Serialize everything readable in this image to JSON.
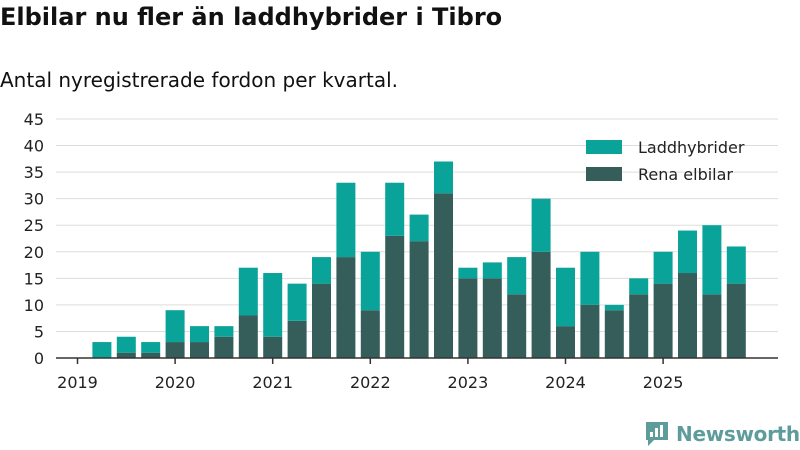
{
  "title": "Elbilar nu fler än laddhybrider i Tibro",
  "subtitle": "Antal nyregistrerade fordon per kvartal.",
  "brand": "Newsworthy",
  "colors": {
    "hybrid": "#0aa39a",
    "electric": "#355e5b",
    "brand": "#5e9c9c"
  },
  "chart_data": {
    "type": "bar",
    "stacked": true,
    "x_unit": "quarter",
    "x": [
      "2019 Q1",
      "2019 Q2",
      "2019 Q3",
      "2019 Q4",
      "2020 Q1",
      "2020 Q2",
      "2020 Q3",
      "2020 Q4",
      "2021 Q1",
      "2021 Q2",
      "2021 Q3",
      "2021 Q4",
      "2022 Q1",
      "2022 Q2",
      "2022 Q3",
      "2022 Q4",
      "2023 Q1",
      "2023 Q2",
      "2023 Q3",
      "2023 Q4",
      "2024 Q1",
      "2024 Q2",
      "2024 Q3",
      "2024 Q4",
      "2025 Q1",
      "2025 Q2",
      "2025 Q3",
      "2025 Q4"
    ],
    "x_tick_labels": [
      "2019",
      "2020",
      "2021",
      "2022",
      "2023",
      "2024",
      "2025"
    ],
    "y_ticks": [
      0,
      5,
      10,
      15,
      20,
      25,
      30,
      35,
      40,
      45
    ],
    "ylim": [
      0,
      45
    ],
    "legend_position": "top-right",
    "grid": true,
    "series": [
      {
        "name": "Rena elbilar",
        "values": [
          0,
          0,
          1,
          1,
          3,
          3,
          4,
          8,
          4,
          7,
          14,
          19,
          9,
          23,
          22,
          31,
          15,
          15,
          12,
          20,
          6,
          10,
          9,
          12,
          14,
          16,
          12,
          14
        ]
      },
      {
        "name": "Laddhybrider",
        "values": [
          0,
          3,
          3,
          2,
          6,
          3,
          2,
          9,
          12,
          7,
          5,
          14,
          11,
          10,
          5,
          6,
          2,
          3,
          7,
          10,
          11,
          10,
          1,
          3,
          6,
          8,
          13,
          7
        ]
      }
    ]
  }
}
